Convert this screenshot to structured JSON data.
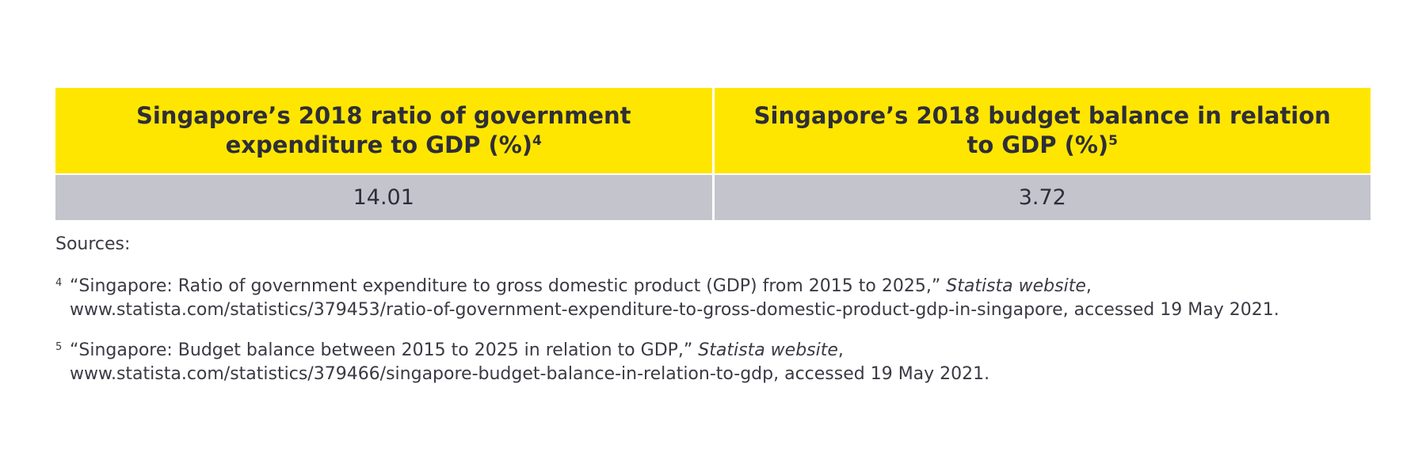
{
  "table": {
    "headers": [
      {
        "text": "Singapore’s 2018 ratio of government expenditure to GDP (%)",
        "note": "4"
      },
      {
        "text": "Singapore’s 2018 budget balance in relation to GDP (%)",
        "note": "5"
      }
    ],
    "rows": [
      [
        14.01,
        3.72
      ]
    ]
  },
  "sources_label": "Sources:",
  "footnotes": [
    {
      "marker": "4",
      "title": "“Singapore: Ratio of government expenditure to gross domestic product (GDP) from 2015 to 2025,”",
      "source": "Statista website",
      "separator": ",",
      "line2": "www.statista.com/statistics/379453/ratio-of-government-expenditure-to-gross-domestic-product-gdp-in-singapore, accessed 19 May 2021."
    },
    {
      "marker": "5",
      "title": "“Singapore: Budget balance between 2015 to 2025 in relation to GDP,”",
      "source": "Statista website",
      "separator": ",",
      "line2": "www.statista.com/statistics/379466/singapore-budget-balance-in-relation-to-gdp, accessed 19 May 2021."
    }
  ]
}
